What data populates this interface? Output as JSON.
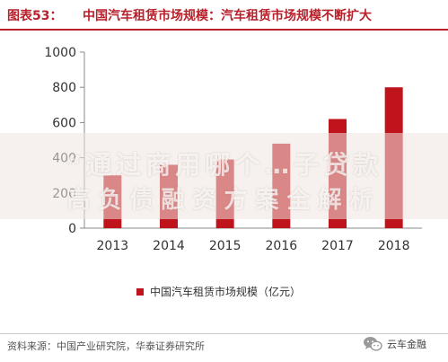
{
  "figure": {
    "number": "图表53：",
    "title": "中国汽车租赁市场规模：汽车租赁市场规模不断扩大"
  },
  "chart_data": {
    "type": "bar",
    "title": "",
    "xlabel": "",
    "ylabel": "",
    "categories": [
      "2013",
      "2014",
      "2015",
      "2016",
      "2017",
      "2018"
    ],
    "series": [
      {
        "name": "中国汽车租赁市场规模（亿元）",
        "values": [
          300,
          360,
          390,
          480,
          620,
          800
        ],
        "color": "#c0141c"
      }
    ],
    "ylim": [
      0,
      1000
    ],
    "yticks": [
      0,
      200,
      400,
      600,
      800,
      1000
    ],
    "grid": false,
    "legend": "bottom",
    "bar_color": "#c0141c",
    "axis_color": "#888888"
  },
  "watermark": {
    "line1": "“通过商用哪个…子贷款",
    "line2": "高负债融资方案全解析"
  },
  "footer": {
    "source": "资料来源：中国产业研究院，华泰证券研究所",
    "account_name": "云车金融",
    "account_icon": "wechat-icon"
  }
}
